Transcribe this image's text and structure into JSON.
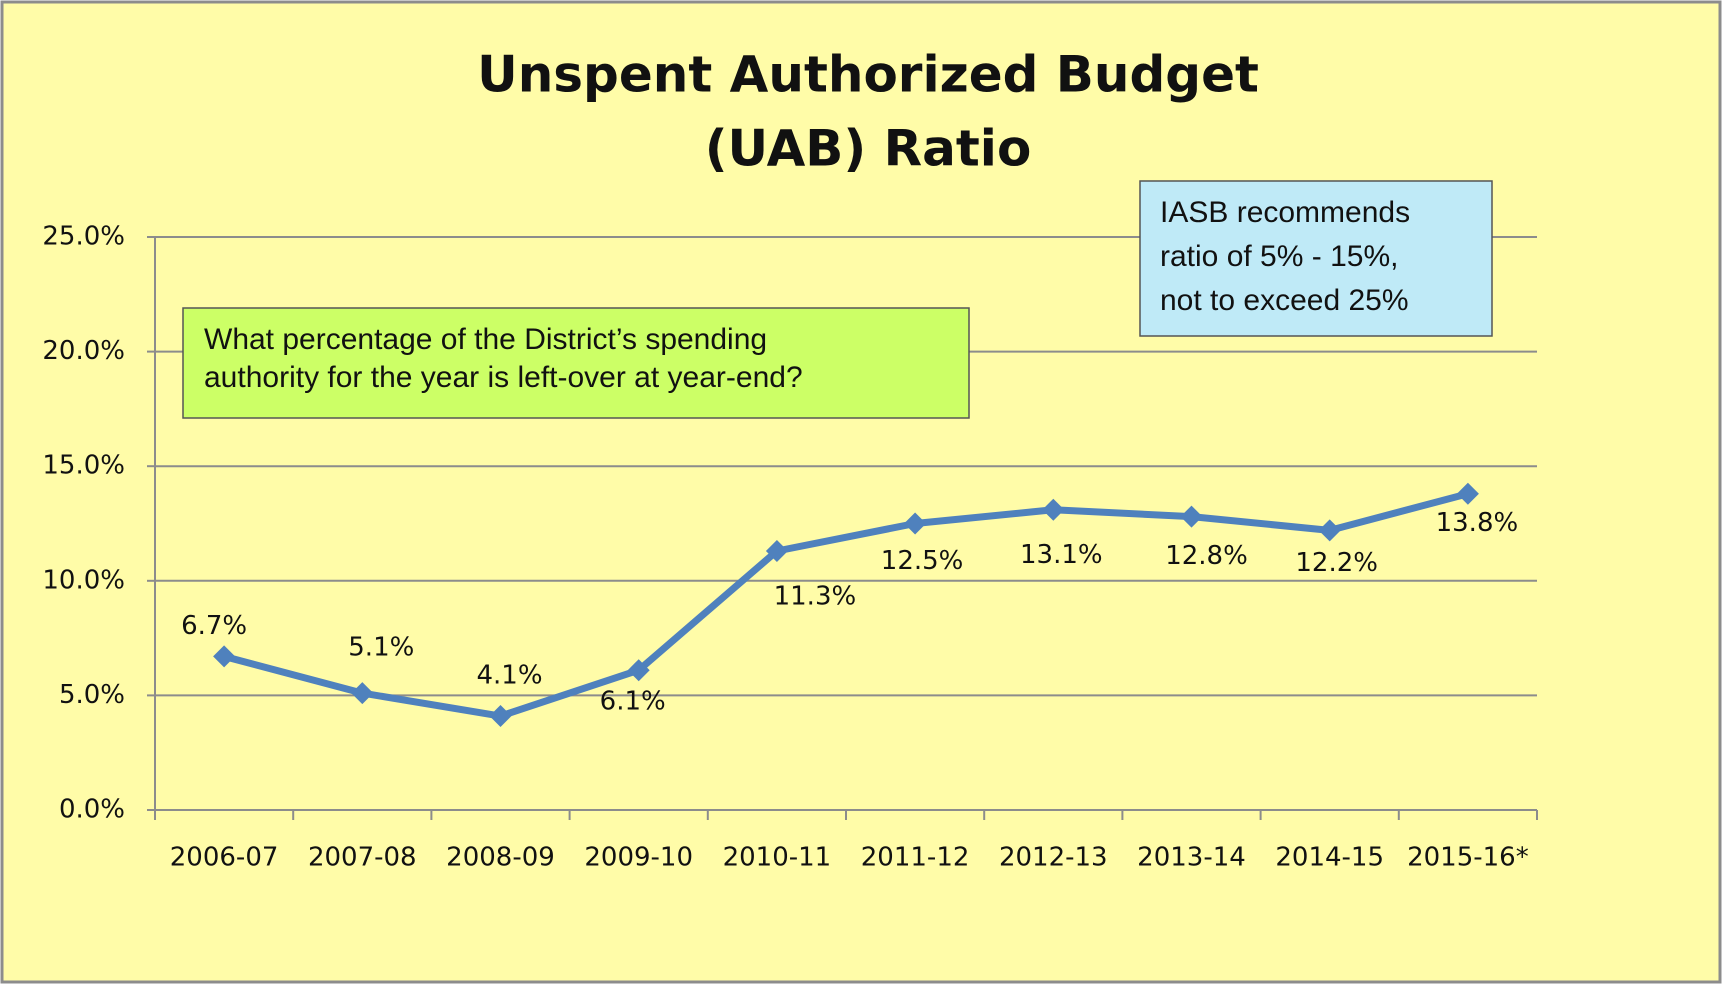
{
  "chart_data": {
    "type": "line",
    "title": [
      "Unspent Authorized Budget",
      "(UAB) Ratio"
    ],
    "categories": [
      "2006-07",
      "2007-08",
      "2008-09",
      "2009-10",
      "2010-11",
      "2011-12",
      "2012-13",
      "2013-14",
      "2014-15",
      "2015-16*"
    ],
    "values": [
      6.7,
      5.1,
      4.1,
      6.1,
      11.3,
      12.5,
      13.1,
      12.8,
      12.2,
      13.8
    ],
    "value_labels": [
      "6.7%",
      "5.1%",
      "4.1%",
      "6.1%",
      "11.3%",
      "12.5%",
      "13.1%",
      "12.8%",
      "12.2%",
      "13.8%"
    ],
    "color": "#4f81bd",
    "ylim": [
      0,
      25
    ],
    "yticks": [
      {
        "value": 0,
        "label": "0.0%"
      },
      {
        "value": 5,
        "label": "5.0%"
      },
      {
        "value": 10,
        "label": "10.0%"
      },
      {
        "value": 15,
        "label": "15.0%"
      },
      {
        "value": 20,
        "label": "20.0%"
      },
      {
        "value": 25,
        "label": "25.0%"
      }
    ],
    "grid": true,
    "annotations": [
      {
        "lines": [
          "What percentage of the District’s spending",
          "authority for the year is left-over at year-end?"
        ],
        "color": "#ccff66"
      },
      {
        "lines": [
          "IASB recommends",
          "ratio of 5% - 15%,",
          "not to exceed 25%"
        ],
        "color": "#bfeaf7"
      }
    ]
  }
}
